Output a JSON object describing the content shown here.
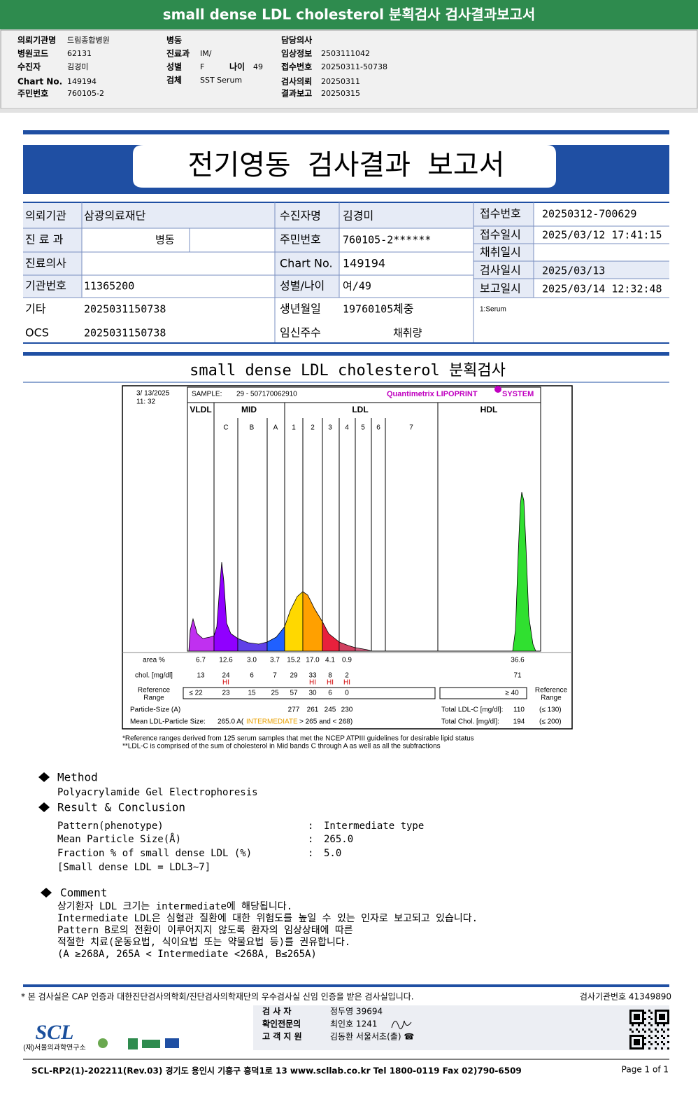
{
  "header": {
    "title": "small dense LDL cholesterol 분획검사 검사결과보고서",
    "col1": [
      [
        "의뢰기관명",
        "드림종합병원"
      ],
      [
        "병원코드",
        "62131"
      ],
      [
        "수진자",
        "김경미"
      ],
      [
        "Chart No.",
        "149194"
      ],
      [
        "주민번호",
        "760105-2"
      ]
    ],
    "col2": [
      [
        "병동"
      ],
      [
        "진료과",
        "IM/"
      ],
      [
        "성별",
        "F"
      ],
      [
        "검체",
        "SST Serum"
      ]
    ],
    "age": [
      "나이",
      "49"
    ],
    "col3": [
      [
        "담당의사"
      ],
      [
        "임상정보",
        "2503111042"
      ],
      [
        "접수번호",
        "20250311-50738"
      ],
      [
        "검사의뢰",
        "20250311"
      ],
      [
        "결과보고",
        "20250315"
      ]
    ]
  },
  "report": {
    "title": "전기영동 검사결과 보고서",
    "left": [
      [
        "의뢰기관",
        "삼광의료재단"
      ],
      [
        "진 료 과",
        "병동"
      ],
      [
        "진료의사"
      ],
      [
        "기관번호",
        "11365200"
      ],
      [
        "기타",
        "2025031150738"
      ],
      [
        "OCS",
        "2025031150738"
      ]
    ],
    "middle": [
      [
        "수진자명",
        "김경미"
      ],
      [
        "주민번호",
        "760105-2******"
      ],
      [
        "Chart No.",
        "149194"
      ],
      [
        "성별/나이",
        "여/49"
      ],
      [
        "생년월일",
        "19760105",
        "체중"
      ],
      [
        "임신주수",
        "채취량"
      ]
    ],
    "right": [
      [
        "접수번호",
        "20250312-700629"
      ],
      [
        "접수일시",
        "2025/03/12 17:41:15"
      ],
      [
        "채취일시"
      ],
      [
        "검사일시",
        "2025/03/13"
      ],
      [
        "보고일시",
        "2025/03/14 12:32:48"
      ]
    ],
    "specimen": "1:Serum"
  },
  "section_title": "small dense LDL cholesterol 분획검사",
  "graph": {
    "date": "3/ 13/2025",
    "time": "11: 32",
    "sample_label": "SAMPLE:",
    "sample": "29 - 507170062910",
    "brand": "Quantimetrix LIPOPRINT",
    "brand_suffix": "SYSTEM",
    "groups": [
      "VLDL",
      "MID",
      "LDL",
      "HDL"
    ],
    "bands": [
      "C",
      "B",
      "A",
      "1",
      "2",
      "3",
      "4",
      "5",
      "6",
      "7"
    ],
    "area": {
      "label": "area %",
      "values": [
        "6.7",
        "12.6",
        "3.0",
        "3.7",
        "15.2",
        "17.0",
        "4.1",
        "0.9"
      ],
      "hdl": "36.6"
    },
    "chol": {
      "label": "chol. [mg/dl]",
      "values": [
        "13",
        "24",
        "6",
        "7",
        "29",
        "33",
        "8",
        "2"
      ],
      "hdl": "71",
      "flags": [
        "HI",
        "HI",
        "HI",
        "HI"
      ]
    },
    "reference": {
      "label": [
        "Reference",
        "Range"
      ],
      "values": [
        "≤ 22",
        "23",
        "15",
        "25",
        "57",
        "30",
        "6",
        "0"
      ],
      "hdl": "≥ 40",
      "side_label": [
        "Reference",
        "Range"
      ]
    },
    "particle_size": {
      "label": "Particle-Size (A)",
      "values": [
        "277",
        "261",
        "245",
        "230"
      ]
    },
    "mean_size": {
      "label": "Mean LDL-Particle Size:",
      "value": "265.0 A(",
      "class": "INTERMEDIATE",
      "range": "> 265 and < 268)"
    },
    "total_ldl": {
      "label": "Total LDL-C [mg/dl]:",
      "value": "110",
      "ref": "(≤ 130)"
    },
    "total_chol": {
      "label": "Total Chol. [mg/dl]:",
      "value": "194",
      "ref": "(≤ 200)"
    },
    "notes": [
      "*Reference ranges derived from 125 serum samples that met the NCEP ATPIII guidelines for desirable lipid status",
      "**LDL-C is comprised of the sum of cholesterol in Mid bands C through A as well as all the subfractions"
    ]
  },
  "method": {
    "heading": "Method",
    "text": "Polyacrylamide Gel Electrophoresis"
  },
  "result": {
    "heading": "Result & Conclusion",
    "rows": [
      [
        "Pattern(phenotype)",
        ":",
        "Intermediate type"
      ],
      [
        "Mean Particle Size(Å)",
        ":",
        "265.0"
      ],
      [
        "Fraction % of small dense LDL (%)",
        ":",
        "5.0"
      ],
      [
        "[Small dense LDL = LDL3~7]"
      ]
    ]
  },
  "comment": {
    "heading": "Comment",
    "lines": [
      "상기환자 LDL 크기는 intermediate에 해당됩니다.",
      "Intermediate LDL은 심혈관 질환에 대한 위험도를 높일 수 있는 인자로 보고되고 있습니다.",
      "Pattern B로의 전환이 이루어지지 않도록 환자의 임상상태에 따른",
      "적절한 치료(운동요법, 식이요법 또는 약물요법 등)를 권유합니다.",
      "(A ≥268A, 265A < Intermediate <268A, B≤265A)"
    ]
  },
  "footer": {
    "notice": "* 본 검사실은 CAP 인증과 대한진단검사의학회/진단검사의학재단의 우수검사실 신임 인증을 받은 검사실입니다.",
    "lab_number": "검사기관번호 41349890",
    "staff": [
      [
        "검 사 자",
        "정두영 39694"
      ],
      [
        "확인전문의",
        "최인호 1241"
      ],
      [
        "고 객 지 원",
        "김동환 서울서초(출) ☎"
      ]
    ],
    "logo": "SCL",
    "institute": "(재)서울의과학연구소",
    "address": "SCL-RP2(1)-202211(Rev.03) 경기도 용인시 기흥구 흥덕1로 13 www.scllab.co.kr Tel 1800-0119 Fax 02)790-6509",
    "page": "Page 1 of 1"
  }
}
